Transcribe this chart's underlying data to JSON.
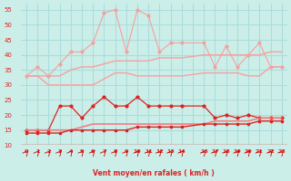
{
  "title": "",
  "xlabel": "Vent moyen/en rafales ( km/h )",
  "background_color": "#cceee8",
  "grid_color": "#aadddd",
  "x_labels": [
    "0",
    "1",
    "2",
    "3",
    "4",
    "5",
    "6",
    "7",
    "8",
    "9",
    "10",
    "11",
    "12",
    "13",
    "14",
    "",
    "16",
    "17",
    "18",
    "19",
    "20",
    "21",
    "22",
    "23"
  ],
  "x_values": [
    0,
    1,
    2,
    3,
    4,
    5,
    6,
    7,
    8,
    9,
    10,
    11,
    12,
    13,
    14,
    16,
    17,
    18,
    19,
    20,
    21,
    22,
    23
  ],
  "ylim": [
    10,
    57
  ],
  "yticks": [
    10,
    15,
    20,
    25,
    30,
    35,
    40,
    45,
    50,
    55
  ],
  "line1_y": [
    33,
    36,
    33,
    37,
    41,
    41,
    44,
    54,
    55,
    41,
    55,
    53,
    41,
    44,
    44,
    44,
    36,
    43,
    36,
    40,
    44,
    36,
    36
  ],
  "line2_y": [
    33,
    33,
    30,
    30,
    30,
    30,
    30,
    32,
    34,
    34,
    33,
    33,
    33,
    33,
    33,
    34,
    34,
    34,
    34,
    33,
    33,
    36,
    36
  ],
  "line3_y": [
    33,
    33,
    33,
    33,
    35,
    36,
    36,
    37,
    38,
    38,
    38,
    38,
    39,
    39,
    39,
    40,
    40,
    40,
    40,
    40,
    40,
    41,
    41
  ],
  "line4_y": [
    15,
    15,
    15,
    23,
    23,
    19,
    23,
    26,
    23,
    23,
    26,
    23,
    23,
    23,
    23,
    23,
    19,
    20,
    19,
    20,
    19,
    19,
    19
  ],
  "line5_y": [
    15,
    15,
    15,
    15,
    15,
    16,
    17,
    17,
    17,
    17,
    17,
    17,
    17,
    17,
    17,
    17,
    18,
    18,
    18,
    18,
    19,
    19,
    19
  ],
  "line6_y": [
    14,
    14,
    14,
    14,
    15,
    15,
    15,
    15,
    15,
    15,
    16,
    16,
    16,
    16,
    16,
    17,
    17,
    17,
    17,
    17,
    18,
    18,
    18
  ],
  "color_light": "#f5a0a0",
  "color_medium": "#f08080",
  "color_dark": "#dd2222",
  "arrow_color": "#cc0000"
}
